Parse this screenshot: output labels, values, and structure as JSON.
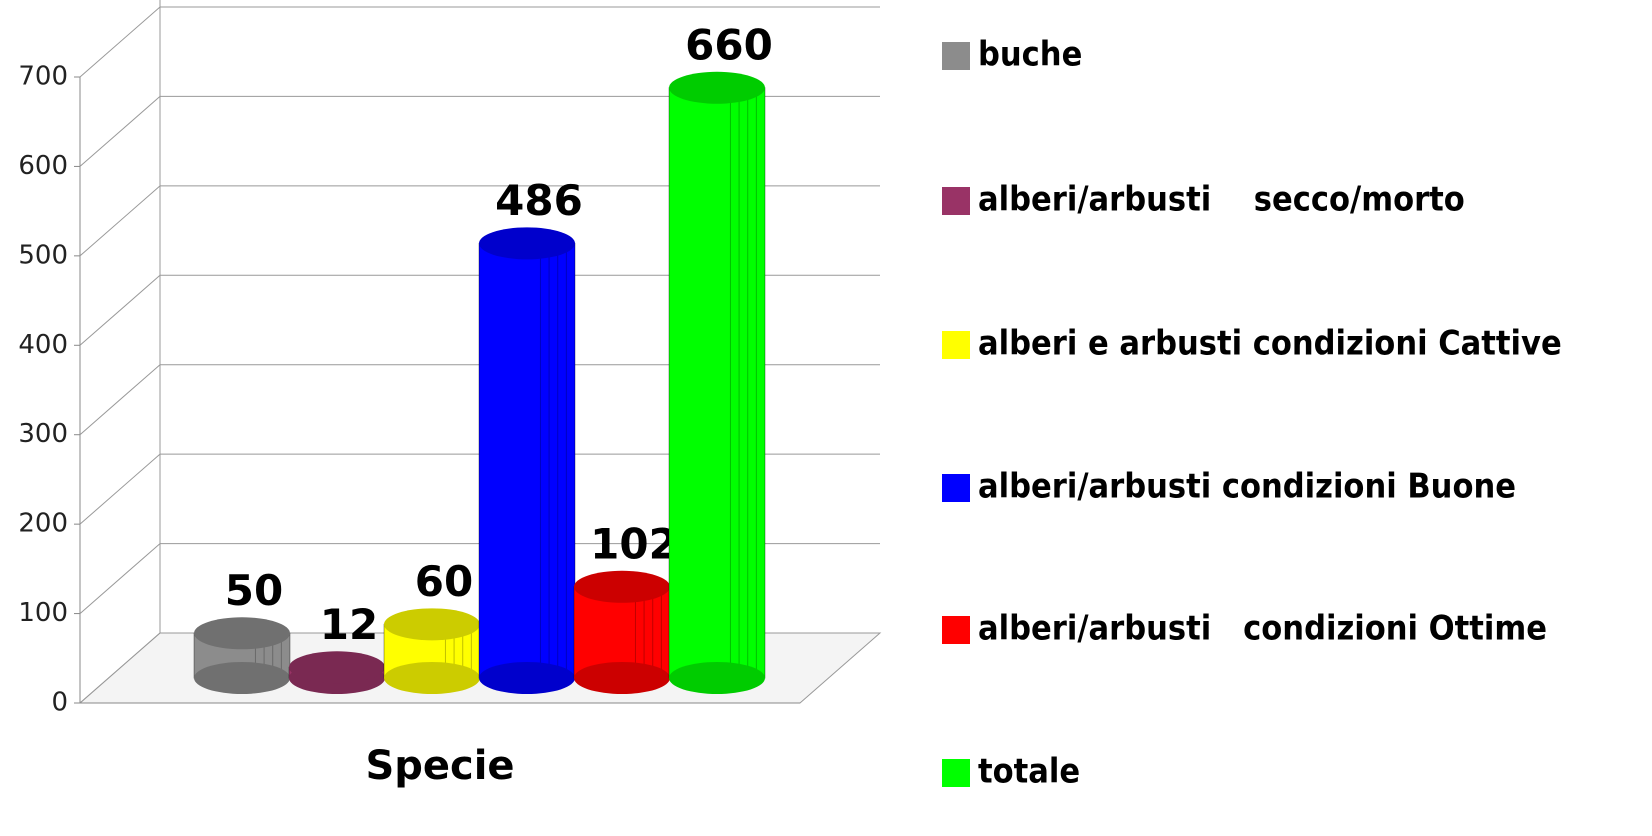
{
  "chart_data": {
    "type": "bar3d",
    "categories": [
      "Specie"
    ],
    "series": [
      {
        "name": "buche",
        "color": "#8c8c8c",
        "values": [
          50
        ]
      },
      {
        "name": "alberi/arbusti    secco/morto",
        "color": "#993366",
        "values": [
          12
        ]
      },
      {
        "name": "alberi e arbusti condizioni Cattive",
        "color": "#ffff00",
        "values": [
          60
        ]
      },
      {
        "name": "alberi/arbusti condizioni Buone",
        "color": "#0000ff",
        "values": [
          486
        ]
      },
      {
        "name": "alberi/arbusti   condizioni Ottime",
        "color": "#ff0000",
        "values": [
          102
        ]
      },
      {
        "name": "totale",
        "color": "#00ff00",
        "values": [
          660
        ]
      }
    ],
    "ylim": [
      0,
      700
    ],
    "yticks": [
      0,
      100,
      200,
      300,
      400,
      500,
      600,
      700
    ],
    "grid": true,
    "legend": "right"
  }
}
